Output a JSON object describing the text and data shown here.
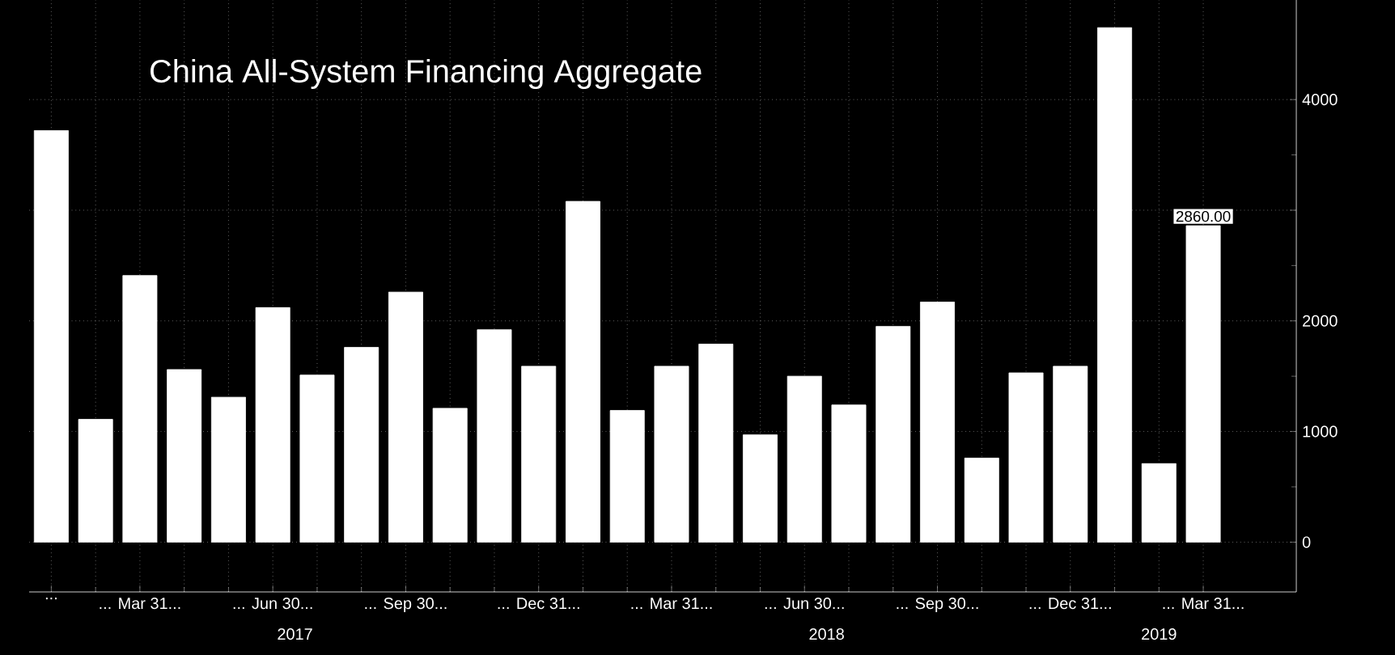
{
  "chart_data": {
    "type": "bar",
    "title": "China All-System Financing Aggregate",
    "categories": [
      "...",
      null,
      "... Mar 31...",
      null,
      null,
      "... Jun 30...",
      null,
      null,
      "... Sep 30...",
      null,
      null,
      "... Dec 31...",
      null,
      null,
      "... Mar 31...",
      null,
      null,
      "... Jun 30...",
      null,
      null,
      "... Sep 30...",
      null,
      null,
      "... Dec 31...",
      null,
      null,
      "... Mar 31..."
    ],
    "values": [
      3720,
      1110,
      2410,
      1560,
      1310,
      2120,
      1510,
      1760,
      2260,
      1210,
      1920,
      1590,
      3080,
      1190,
      1590,
      1790,
      970,
      1500,
      1240,
      1950,
      2170,
      760,
      1530,
      1590,
      4650,
      710,
      2860
    ],
    "value_labels": [
      null,
      null,
      null,
      null,
      null,
      null,
      null,
      null,
      null,
      null,
      null,
      null,
      null,
      null,
      null,
      null,
      null,
      null,
      null,
      null,
      null,
      null,
      null,
      null,
      null,
      null,
      "2860.00"
    ],
    "color": "#ffffff",
    "ylim": [
      -450,
      4900
    ],
    "yticks": [
      0,
      1000,
      2000,
      {
        "value": 3000,
        "label": null
      },
      4000
    ],
    "annotations": [
      "2017",
      "2018",
      "2019"
    ],
    "grid": true
  }
}
